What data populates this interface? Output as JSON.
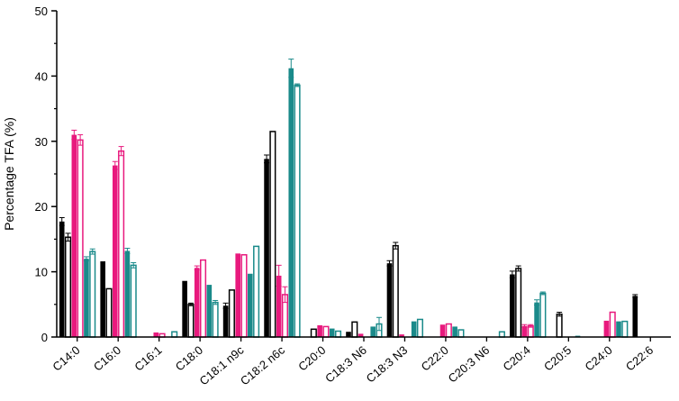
{
  "chart_data": {
    "type": "bar",
    "ylabel": "Percentage TFA (%)",
    "xlabel": "",
    "ylim": [
      0,
      50
    ],
    "yticks": [
      "0",
      "10",
      "20",
      "30",
      "40",
      "50"
    ],
    "categories": [
      "C14:0",
      "C16:0",
      "C16:1",
      "C18:0",
      "C18:1 n9c",
      "C18:2 n6c",
      "C20:0",
      "C18:3 N6",
      "C18:3 N3",
      "C22:0",
      "C20:3 N6",
      "C20:4",
      "C20:5",
      "C24:0",
      "C22:6"
    ],
    "legend": "none",
    "series": [
      {
        "color": "#000000",
        "fill": "solid",
        "values": [
          17.7,
          11.6,
          0.0,
          8.6,
          4.8,
          27.3,
          0.0,
          0.8,
          11.3,
          0.0,
          0.0,
          9.6,
          0.0,
          0.0,
          6.3
        ],
        "errors": [
          0.6,
          0.0,
          0.0,
          0.0,
          0.4,
          0.6,
          0.0,
          0.0,
          0.4,
          0.0,
          0.0,
          0.5,
          0.0,
          0.0,
          0.2
        ]
      },
      {
        "color": "#000000",
        "fill": "open",
        "values": [
          15.3,
          7.4,
          0.0,
          5.0,
          7.2,
          31.5,
          1.2,
          2.3,
          14.0,
          0.0,
          0.0,
          10.5,
          3.5,
          0.0,
          0.0
        ],
        "errors": [
          0.6,
          0.0,
          0.0,
          0.2,
          0.0,
          0.0,
          0.0,
          0.0,
          0.5,
          0.0,
          0.0,
          0.4,
          0.3,
          0.0,
          0.0
        ]
      },
      {
        "color": "#e8197d",
        "fill": "solid",
        "values": [
          31.0,
          26.3,
          0.7,
          10.6,
          12.8,
          9.4,
          1.8,
          0.5,
          0.4,
          1.9,
          0.0,
          1.7,
          0.0,
          2.5,
          0.0
        ],
        "errors": [
          0.7,
          0.6,
          0.0,
          0.3,
          0.0,
          1.6,
          0.0,
          0.0,
          0.0,
          0.0,
          0.0,
          0.2,
          0.0,
          0.0,
          0.0
        ]
      },
      {
        "color": "#e8197d",
        "fill": "open",
        "values": [
          30.2,
          28.5,
          0.5,
          11.8,
          12.6,
          6.5,
          1.6,
          0.0,
          0.0,
          2.0,
          0.0,
          1.7,
          0.0,
          3.8,
          0.0
        ],
        "errors": [
          0.8,
          0.7,
          0.0,
          0.0,
          0.0,
          1.2,
          0.0,
          0.0,
          0.0,
          0.0,
          0.0,
          0.2,
          0.0,
          0.0,
          0.0
        ]
      },
      {
        "color": "#1a8a8a",
        "fill": "solid",
        "values": [
          12.0,
          13.2,
          0.0,
          8.0,
          9.7,
          41.2,
          1.3,
          1.6,
          2.4,
          1.6,
          0.0,
          5.3,
          0.2,
          2.4,
          0.0
        ],
        "errors": [
          0.3,
          0.4,
          0.0,
          0.0,
          0.0,
          1.4,
          0.0,
          0.0,
          0.0,
          0.0,
          0.0,
          0.4,
          0.0,
          0.0,
          0.0
        ]
      },
      {
        "color": "#1a8a8a",
        "fill": "open",
        "values": [
          13.1,
          11.0,
          0.8,
          5.3,
          13.9,
          38.6,
          0.9,
          2.0,
          2.7,
          1.1,
          0.8,
          6.7,
          0.0,
          2.4,
          0.0
        ],
        "errors": [
          0.4,
          0.4,
          0.0,
          0.3,
          0.0,
          0.2,
          0.0,
          1.0,
          0.0,
          0.0,
          0.0,
          0.2,
          0.0,
          0.0,
          0.0
        ]
      }
    ]
  }
}
